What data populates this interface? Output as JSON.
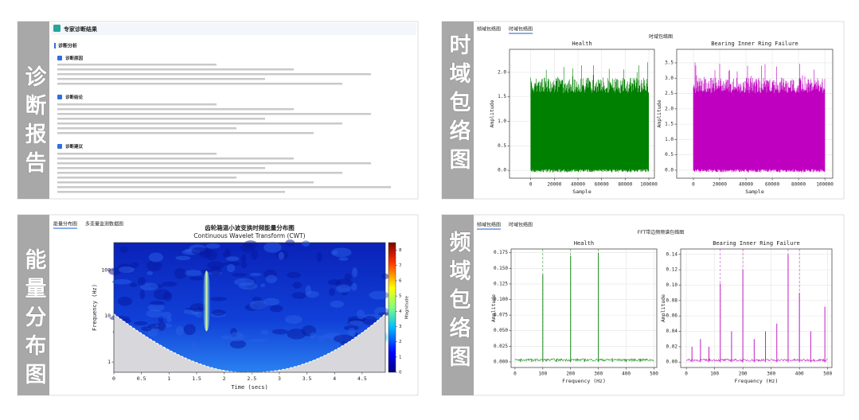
{
  "panels": [
    {
      "label": "诊断报告",
      "header": "专家诊断结果",
      "section": "诊断分析",
      "subsections": [
        "诊断原因",
        "诊断结论",
        "诊断建议"
      ]
    },
    {
      "label": "时域包络图",
      "tabs": [
        "频域包络图",
        "时域包络图"
      ],
      "active_tab": 1,
      "title": "时域包络图",
      "charts": [
        {
          "type": "waveform",
          "title": "Health",
          "color": "#008000",
          "xlabel": "Sample",
          "ylabel": "Amplitude",
          "grid": true,
          "xlim": [
            -18000,
            104700
          ],
          "xticks": [
            0,
            20000,
            40000,
            60000,
            80000,
            100000
          ],
          "ylim": [
            -0.16,
            2.47
          ],
          "yticks": [
            {
              "value": 0,
              "label": "0.0"
            },
            0.5,
            {
              "value": 1,
              "label": "1.0"
            },
            1.5,
            {
              "value": 2,
              "label": "2.0"
            }
          ]
        },
        {
          "type": "waveform",
          "title": "Bearing Inner Ring Failure",
          "color": "#c000c0",
          "xlabel": "Sample",
          "ylabel": "Amplitude",
          "grid": true,
          "xlim": [
            -12700,
            106000
          ],
          "xticks": [
            0,
            20000,
            40000,
            60000,
            80000,
            100000
          ],
          "ylim": [
            -0.26,
            3.94
          ],
          "yticks": [
            {
              "value": 0,
              "label": "0.0"
            },
            0.5,
            {
              "value": 1,
              "label": "1.0"
            },
            1.5,
            {
              "value": 2,
              "label": "2.0"
            },
            2.5,
            {
              "value": 3,
              "label": "3.0"
            },
            3.5
          ]
        }
      ]
    },
    {
      "label": "能量分布图",
      "tabs": [
        "能量分布图",
        "多变量监测数据图"
      ],
      "active_tab": 0,
      "chart": {
        "type": "cwt",
        "title": "齿轮箱温小波变换时频能量分布图",
        "subtitle": "Continuous Wavelet Transform (CWT)",
        "xlabel": "Time (secs)",
        "ylabel": "Frequency (Hz)",
        "log_y": true,
        "xlim": [
          0,
          4.92
        ],
        "xticks": [
          0,
          0.5,
          1,
          1.5,
          2,
          2.5,
          3,
          3.5,
          4,
          4.5
        ],
        "ylim": [
          0.6,
          390
        ],
        "yticks": [
          1,
          10,
          100
        ],
        "colorbar": {
          "label": "Magnitude",
          "lim": [
            0,
            8.5
          ],
          "ticks": [
            0,
            1,
            2,
            3,
            4,
            5,
            6,
            7,
            8
          ]
        }
      }
    },
    {
      "label": "频域包络图",
      "tabs": [
        "频域包络图",
        "时域包络图"
      ],
      "active_tab": 0,
      "title": "FFT带边频频谱包络图",
      "charts": [
        {
          "type": "spectrum",
          "title": "Health",
          "color": "#1a8a1a",
          "xlabel": "Frequency (Hz)",
          "ylabel": "Amplitude",
          "grid": true,
          "xlim": [
            -14,
            510
          ],
          "xticks": [
            0,
            100,
            200,
            300,
            400,
            500
          ],
          "ylim": [
            -0.009,
            0.181
          ],
          "yticks": [
            {
              "value": 0,
              "label": "0.000"
            },
            0.025,
            {
              "value": 0.05,
              "label": "0.050"
            },
            0.075,
            {
              "value": 0.1,
              "label": "0.100"
            },
            0.125,
            {
              "value": 0.15,
              "label": "0.150"
            },
            0.175
          ],
          "harmonics": [
            100,
            200,
            300
          ],
          "x": [
            20,
            60,
            100,
            150,
            200,
            250,
            300,
            350,
            400,
            450
          ],
          "values": [
            0.005,
            0.004,
            0.14,
            0.005,
            0.17,
            0.004,
            0.175,
            0.006,
            0.004,
            0.005
          ]
        },
        {
          "type": "spectrum",
          "title": "Bearing Inner Ring Failure",
          "color": "#c020c0",
          "xlabel": "Frequency (Hz)",
          "ylabel": "Amplitude",
          "grid": true,
          "xlim": [
            -20,
            515
          ],
          "xticks": [
            0,
            100,
            200,
            300,
            400,
            500
          ],
          "ylim": [
            -0.007,
            0.147
          ],
          "yticks": [
            {
              "value": 0,
              "label": "0.00"
            },
            0.02,
            0.04,
            0.06,
            0.08,
            {
              "value": 0.1,
              "label": "0.10"
            },
            0.12,
            0.14
          ],
          "harmonics": [
            120,
            200,
            360,
            400
          ],
          "x": [
            20,
            50,
            80,
            120,
            160,
            200,
            240,
            280,
            320,
            360,
            400,
            440,
            490
          ],
          "values": [
            0.02,
            0.03,
            0.02,
            0.102,
            0.04,
            0.12,
            0.03,
            0.04,
            0.05,
            0.14,
            0.09,
            0.04,
            0.072
          ]
        }
      ]
    }
  ]
}
